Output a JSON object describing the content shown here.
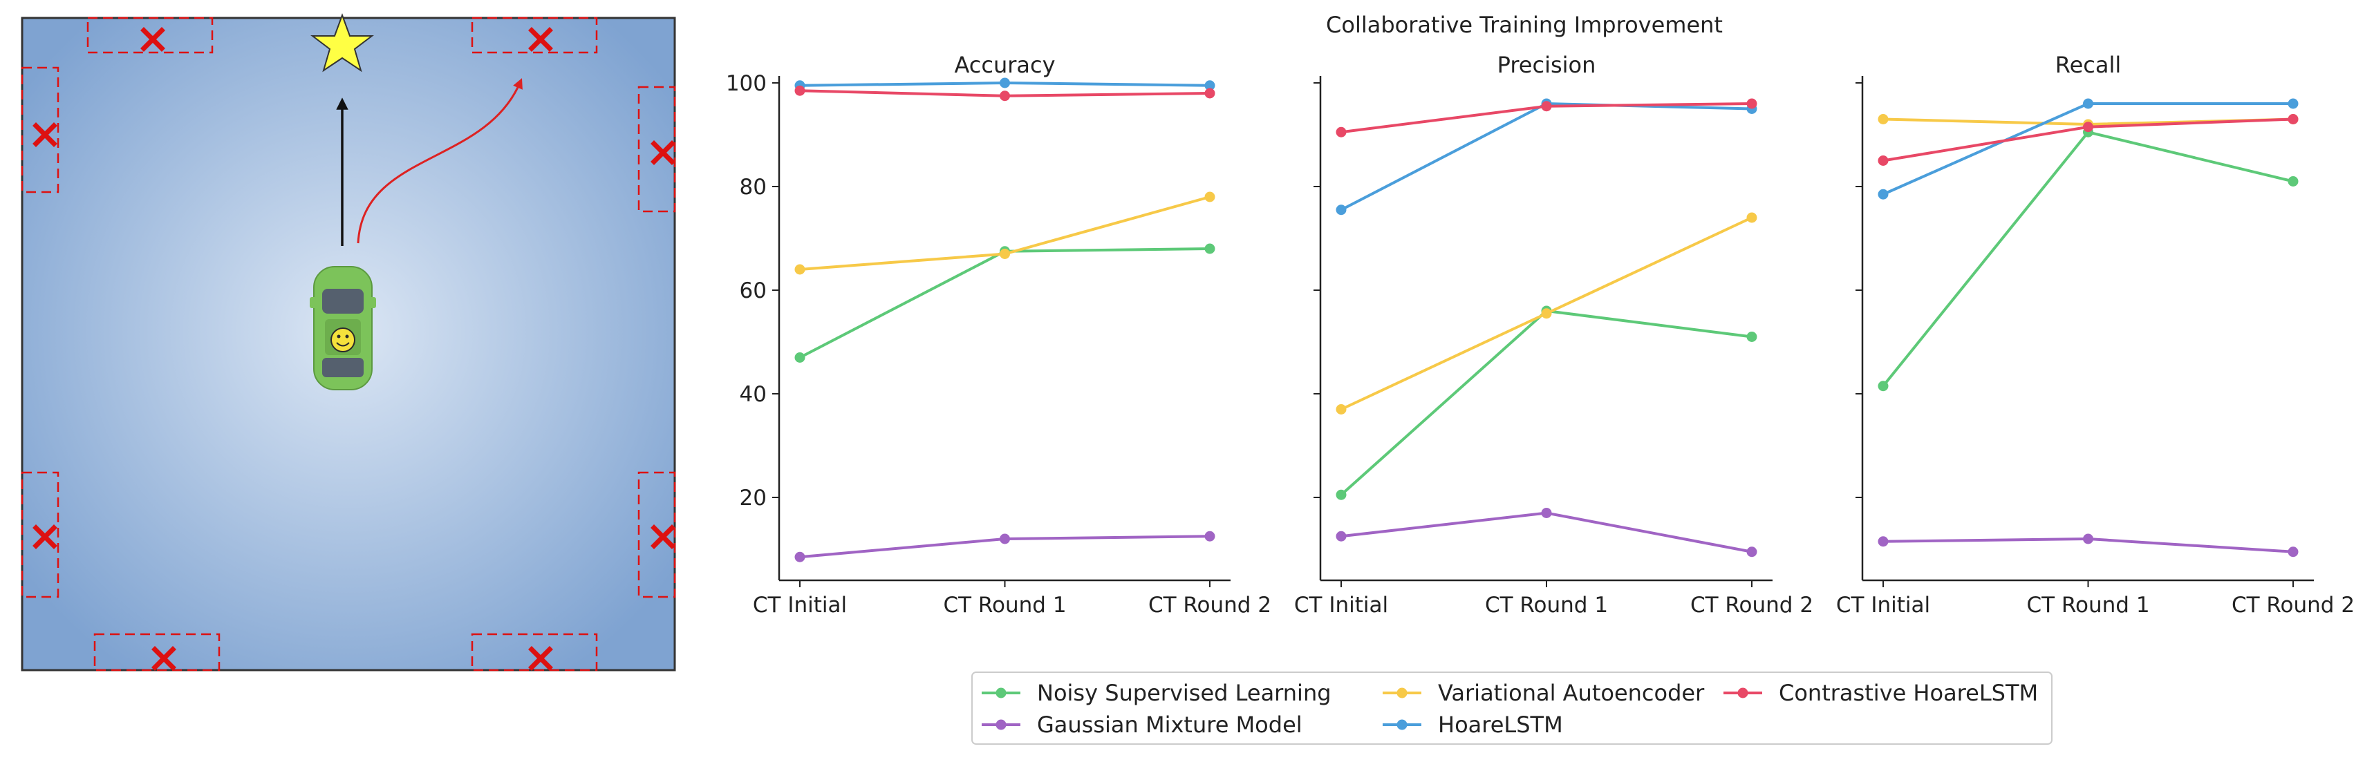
{
  "figure": {
    "suptitle": "Collaborative Training Improvement"
  },
  "scene": {
    "car_icon": "car-icon",
    "goal_icon": "star-icon",
    "hazard_icon": "x-mark-icon",
    "colors": {
      "background_center": "#dbe6f4",
      "background_edge": "#7fa3d1",
      "car": "#7cc35a",
      "star": "#ffff44",
      "hazard": "#dd1111",
      "straight_arrow": "#111111",
      "curved_arrow": "#dd2222"
    }
  },
  "chart_data": [
    {
      "type": "line",
      "title": "Accuracy",
      "categories": [
        "CT Initial",
        "CT Round 1",
        "CT Round 2"
      ],
      "ylim": [
        4,
        100
      ],
      "yticks": [
        20,
        40,
        60,
        80,
        100
      ],
      "series": [
        {
          "name": "Noisy Supervised Learning",
          "values": [
            47,
            67.5,
            68
          ]
        },
        {
          "name": "Gaussian Mixture Model",
          "values": [
            8.5,
            12,
            12.5
          ]
        },
        {
          "name": "Variational Autoencoder",
          "values": [
            64,
            67,
            78
          ]
        },
        {
          "name": "HoareLSTM",
          "values": [
            99.5,
            100,
            99.5
          ]
        },
        {
          "name": "Contrastive HoareLSTM",
          "values": [
            98.5,
            97.5,
            98
          ]
        }
      ]
    },
    {
      "type": "line",
      "title": "Precision",
      "categories": [
        "CT Initial",
        "CT Round 1",
        "CT Round 2"
      ],
      "ylim": [
        4,
        100
      ],
      "series": [
        {
          "name": "Noisy Supervised Learning",
          "values": [
            20.5,
            56,
            51
          ]
        },
        {
          "name": "Gaussian Mixture Model",
          "values": [
            12.5,
            17,
            9.5
          ]
        },
        {
          "name": "Variational Autoencoder",
          "values": [
            37,
            55.5,
            74
          ]
        },
        {
          "name": "HoareLSTM",
          "values": [
            75.5,
            96,
            95
          ]
        },
        {
          "name": "Contrastive HoareLSTM",
          "values": [
            90.5,
            95.5,
            96
          ]
        }
      ]
    },
    {
      "type": "line",
      "title": "Recall",
      "categories": [
        "CT Initial",
        "CT Round 1",
        "CT Round 2"
      ],
      "ylim": [
        4,
        100
      ],
      "series": [
        {
          "name": "Noisy Supervised Learning",
          "values": [
            41.5,
            90.5,
            81
          ]
        },
        {
          "name": "Gaussian Mixture Model",
          "values": [
            11.5,
            12,
            9.5
          ]
        },
        {
          "name": "Variational Autoencoder",
          "values": [
            93,
            92,
            93
          ]
        },
        {
          "name": "HoareLSTM",
          "values": [
            78.5,
            96,
            96
          ]
        },
        {
          "name": "Contrastive HoareLSTM",
          "values": [
            85,
            91.5,
            93
          ]
        }
      ]
    }
  ],
  "legend": {
    "location": "bottom-center",
    "columns": 3,
    "entries": [
      {
        "name": "Noisy Supervised Learning",
        "color": "#5dc978"
      },
      {
        "name": "Gaussian Mixture Model",
        "color": "#a064c4"
      },
      {
        "name": "Variational Autoencoder",
        "color": "#f7c948"
      },
      {
        "name": "HoareLSTM",
        "color": "#4a9edb"
      },
      {
        "name": "Contrastive HoareLSTM",
        "color": "#e84866"
      }
    ]
  },
  "series_colors": {
    "Noisy Supervised Learning": "#5dc978",
    "Gaussian Mixture Model": "#a064c4",
    "Variational Autoencoder": "#f7c948",
    "HoareLSTM": "#4a9edb",
    "Contrastive HoareLSTM": "#e84866"
  }
}
